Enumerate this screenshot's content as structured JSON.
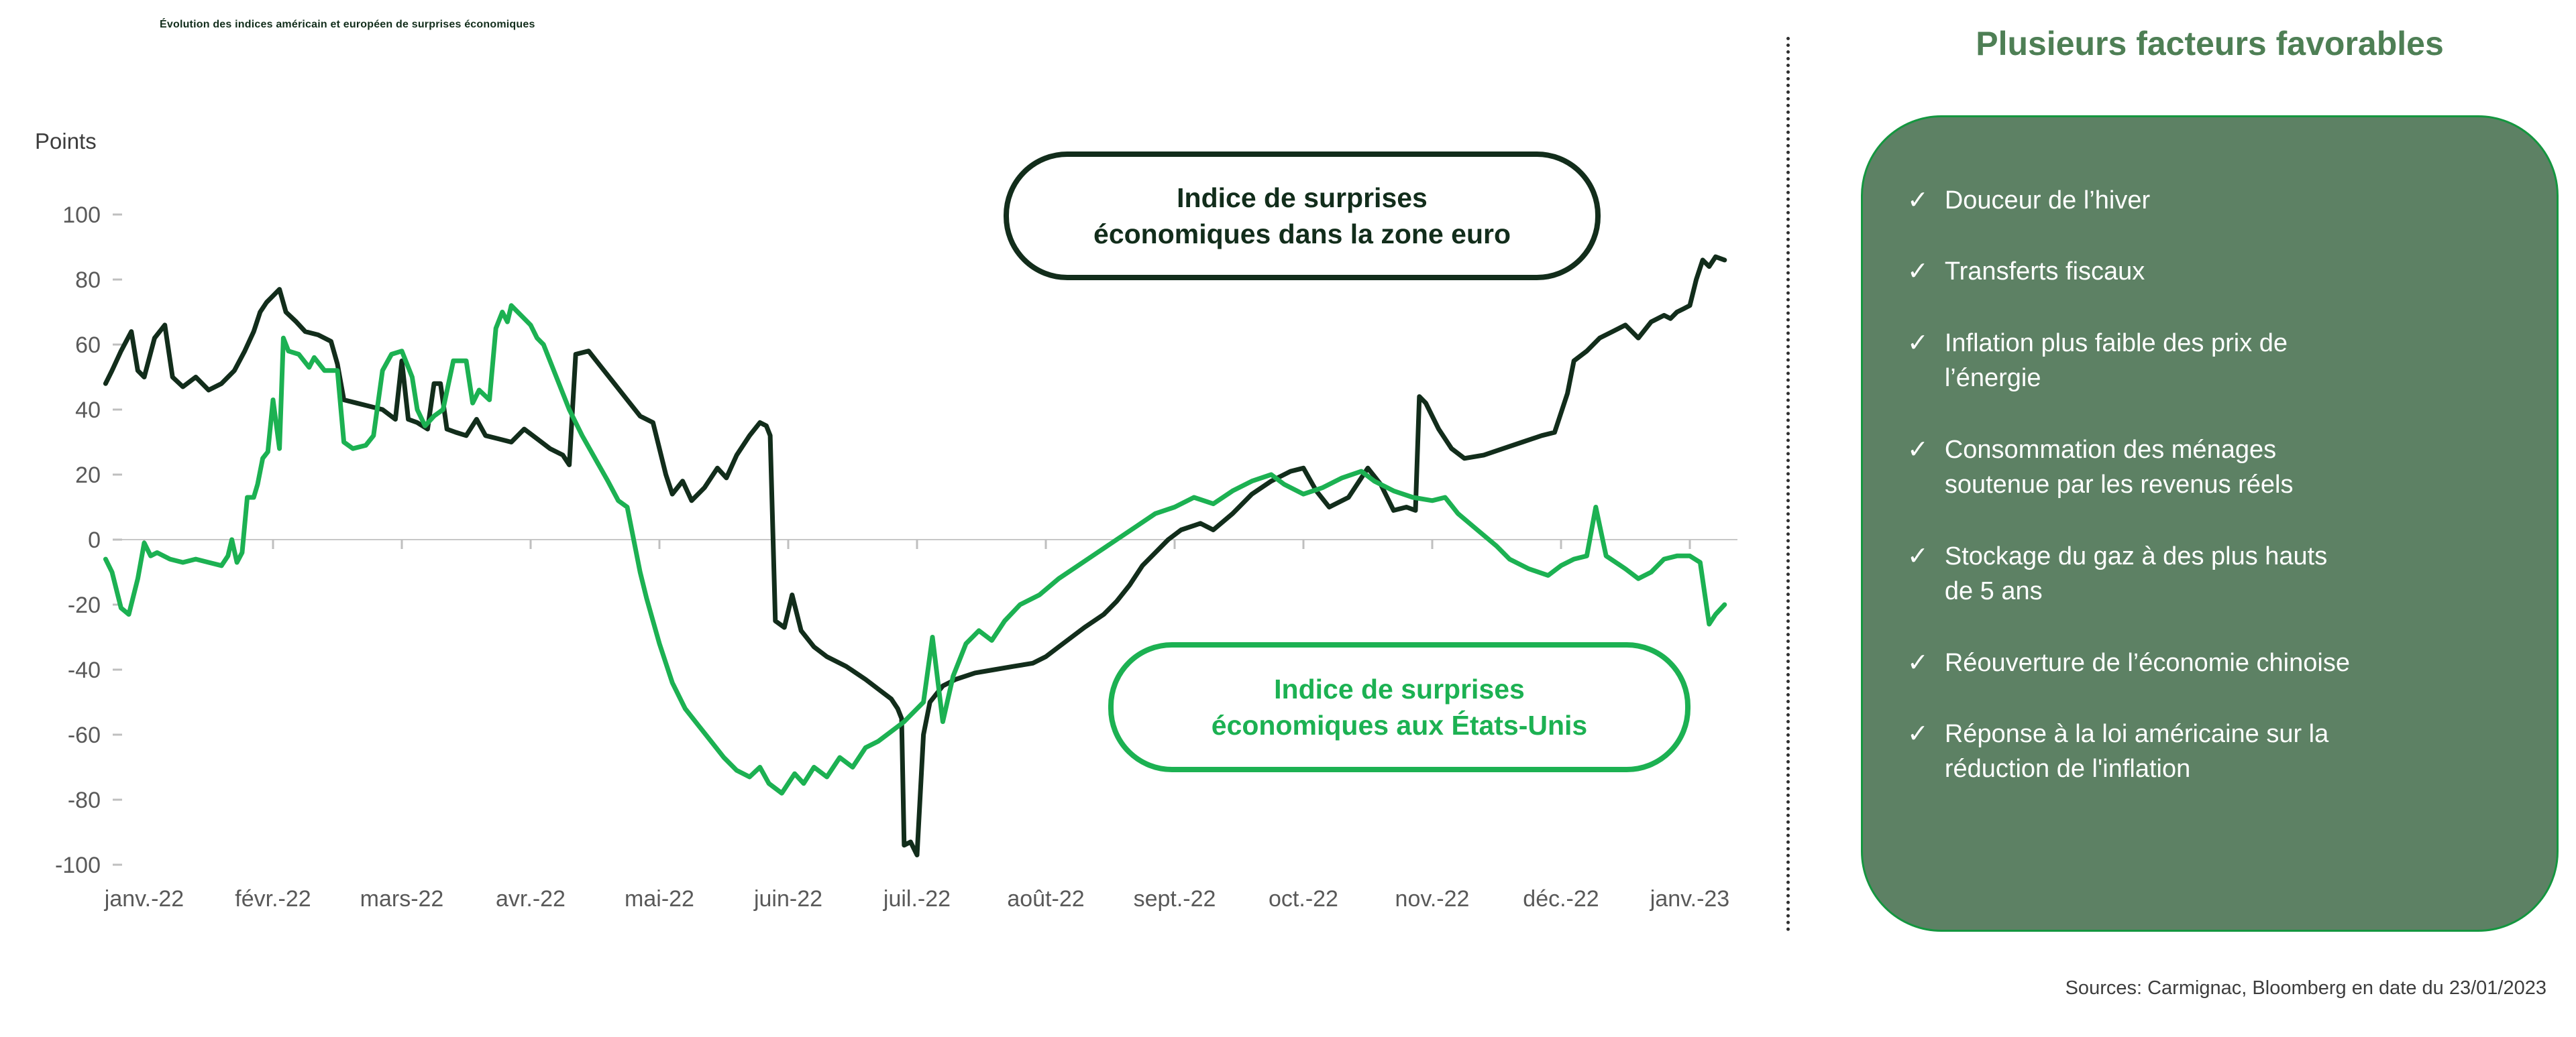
{
  "title": "Évolution des indices américain et européen de surprises économiques",
  "source_note": "Sources: Carmignac, Bloomberg en date du 23/01/2023",
  "legend_euro": "Indice de surprises\néconomiques dans la zone euro",
  "legend_us": "Indice de surprises\néconomiques aux États-Unis",
  "sidebar": {
    "title": "Plusieurs facteurs favorables",
    "check": "✓",
    "items": [
      "Douceur de l’hiver",
      "Transferts fiscaux",
      "Inflation plus faible des prix de\nl’énergie",
      "Consommation des ménages\nsoutenue par les revenus réels",
      "Stockage du gaz à des plus hauts\nde 5 ans",
      "Réouverture de l’économie chinoise",
      "Réponse à la loi américaine sur la\nréduction de l'inflation"
    ]
  },
  "colors": {
    "euro_line": "#122d1b",
    "us_line": "#1cb152",
    "panel_bg": "#5d8164",
    "panel_border": "#14963f",
    "panel_title": "#4e7f55",
    "axis_text": "#595959",
    "zero_line": "#c8c8c8"
  },
  "chart_data": {
    "type": "line",
    "title": "Évolution des indices américain et européen de surprises économiques",
    "xlabel": "",
    "ylabel": "Points",
    "ylim": [
      -100,
      100
    ],
    "yticks": [
      100,
      80,
      60,
      40,
      20,
      0,
      -20,
      -40,
      -60,
      -80,
      -100
    ],
    "categories": [
      "janv.-22",
      "févr.-22",
      "mars-22",
      "avr.-22",
      "mai-22",
      "juin-22",
      "juil.-22",
      "août-22",
      "sept.-22",
      "oct.-22",
      "nov.-22",
      "déc.-22",
      "janv.-23"
    ],
    "x_unit": "months after janv.-22 tick",
    "grid": "zero axis only",
    "legend_position": "annotated rounded boxes on plot",
    "series": [
      {
        "id": "euro-line",
        "name": "Indice de surprises économiques dans la zone euro",
        "color": "#122d1b",
        "points": [
          [
            -0.3,
            48
          ],
          [
            -0.25,
            52
          ],
          [
            -0.18,
            58
          ],
          [
            -0.1,
            64
          ],
          [
            -0.05,
            52
          ],
          [
            0.0,
            50
          ],
          [
            0.08,
            62
          ],
          [
            0.16,
            66
          ],
          [
            0.22,
            50
          ],
          [
            0.3,
            47
          ],
          [
            0.4,
            50
          ],
          [
            0.5,
            46
          ],
          [
            0.6,
            48
          ],
          [
            0.7,
            52
          ],
          [
            0.78,
            58
          ],
          [
            0.85,
            64
          ],
          [
            0.9,
            70
          ],
          [
            0.95,
            73
          ],
          [
            1.0,
            75
          ],
          [
            1.05,
            77
          ],
          [
            1.1,
            70
          ],
          [
            1.18,
            67
          ],
          [
            1.25,
            64
          ],
          [
            1.35,
            63
          ],
          [
            1.45,
            61
          ],
          [
            1.5,
            54
          ],
          [
            1.55,
            43
          ],
          [
            1.65,
            42
          ],
          [
            1.75,
            41
          ],
          [
            1.85,
            40
          ],
          [
            1.95,
            37
          ],
          [
            2.0,
            55
          ],
          [
            2.05,
            37
          ],
          [
            2.12,
            36
          ],
          [
            2.2,
            34
          ],
          [
            2.25,
            48
          ],
          [
            2.3,
            48
          ],
          [
            2.35,
            34
          ],
          [
            2.42,
            33
          ],
          [
            2.5,
            32
          ],
          [
            2.58,
            37
          ],
          [
            2.65,
            32
          ],
          [
            2.75,
            31
          ],
          [
            2.85,
            30
          ],
          [
            2.95,
            34
          ],
          [
            3.05,
            31
          ],
          [
            3.15,
            28
          ],
          [
            3.25,
            26
          ],
          [
            3.3,
            23
          ],
          [
            3.35,
            57
          ],
          [
            3.45,
            58
          ],
          [
            3.55,
            53
          ],
          [
            3.65,
            48
          ],
          [
            3.75,
            43
          ],
          [
            3.85,
            38
          ],
          [
            3.95,
            36
          ],
          [
            4.05,
            20
          ],
          [
            4.1,
            14
          ],
          [
            4.18,
            18
          ],
          [
            4.25,
            12
          ],
          [
            4.35,
            16
          ],
          [
            4.45,
            22
          ],
          [
            4.52,
            19
          ],
          [
            4.6,
            26
          ],
          [
            4.7,
            32
          ],
          [
            4.78,
            36
          ],
          [
            4.83,
            35
          ],
          [
            4.86,
            32
          ],
          [
            4.9,
            -25
          ],
          [
            4.97,
            -27
          ],
          [
            5.03,
            -17
          ],
          [
            5.1,
            -28
          ],
          [
            5.2,
            -33
          ],
          [
            5.3,
            -36
          ],
          [
            5.45,
            -39
          ],
          [
            5.6,
            -43
          ],
          [
            5.7,
            -46
          ],
          [
            5.8,
            -49
          ],
          [
            5.85,
            -52
          ],
          [
            5.88,
            -55
          ],
          [
            5.9,
            -94
          ],
          [
            5.95,
            -93
          ],
          [
            6.0,
            -97
          ],
          [
            6.05,
            -60
          ],
          [
            6.1,
            -50
          ],
          [
            6.2,
            -45
          ],
          [
            6.3,
            -43
          ],
          [
            6.45,
            -41
          ],
          [
            6.6,
            -40
          ],
          [
            6.75,
            -39
          ],
          [
            6.9,
            -38
          ],
          [
            7.0,
            -36
          ],
          [
            7.1,
            -33
          ],
          [
            7.2,
            -30
          ],
          [
            7.3,
            -27
          ],
          [
            7.45,
            -23
          ],
          [
            7.55,
            -19
          ],
          [
            7.65,
            -14
          ],
          [
            7.75,
            -8
          ],
          [
            7.85,
            -4
          ],
          [
            7.95,
            0
          ],
          [
            8.05,
            3
          ],
          [
            8.2,
            5
          ],
          [
            8.3,
            3
          ],
          [
            8.45,
            8
          ],
          [
            8.6,
            14
          ],
          [
            8.75,
            18
          ],
          [
            8.9,
            21
          ],
          [
            9.0,
            22
          ],
          [
            9.1,
            15
          ],
          [
            9.2,
            10
          ],
          [
            9.35,
            13
          ],
          [
            9.5,
            22
          ],
          [
            9.6,
            17
          ],
          [
            9.7,
            9
          ],
          [
            9.8,
            10
          ],
          [
            9.87,
            9
          ],
          [
            9.9,
            44
          ],
          [
            9.95,
            42
          ],
          [
            10.05,
            34
          ],
          [
            10.15,
            28
          ],
          [
            10.25,
            25
          ],
          [
            10.4,
            26
          ],
          [
            10.55,
            28
          ],
          [
            10.7,
            30
          ],
          [
            10.85,
            32
          ],
          [
            10.95,
            33
          ],
          [
            11.05,
            45
          ],
          [
            11.1,
            55
          ],
          [
            11.2,
            58
          ],
          [
            11.3,
            62
          ],
          [
            11.4,
            64
          ],
          [
            11.5,
            66
          ],
          [
            11.55,
            64
          ],
          [
            11.6,
            62
          ],
          [
            11.7,
            67
          ],
          [
            11.8,
            69
          ],
          [
            11.85,
            68
          ],
          [
            11.9,
            70
          ],
          [
            11.95,
            71
          ],
          [
            12.0,
            72
          ],
          [
            12.05,
            80
          ],
          [
            12.1,
            86
          ],
          [
            12.15,
            84
          ],
          [
            12.2,
            87
          ],
          [
            12.27,
            86
          ]
        ]
      },
      {
        "id": "us-line",
        "name": "Indice de surprises économiques aux États-Unis",
        "color": "#1cb152",
        "points": [
          [
            -0.3,
            -6
          ],
          [
            -0.25,
            -10
          ],
          [
            -0.18,
            -21
          ],
          [
            -0.12,
            -23
          ],
          [
            -0.05,
            -12
          ],
          [
            0.0,
            -1
          ],
          [
            0.05,
            -5
          ],
          [
            0.1,
            -4
          ],
          [
            0.2,
            -6
          ],
          [
            0.3,
            -7
          ],
          [
            0.4,
            -6
          ],
          [
            0.5,
            -7
          ],
          [
            0.6,
            -8
          ],
          [
            0.65,
            -5
          ],
          [
            0.68,
            0
          ],
          [
            0.72,
            -7
          ],
          [
            0.76,
            -4
          ],
          [
            0.8,
            13
          ],
          [
            0.85,
            13
          ],
          [
            0.88,
            17
          ],
          [
            0.92,
            25
          ],
          [
            0.96,
            27
          ],
          [
            1.0,
            43
          ],
          [
            1.05,
            28
          ],
          [
            1.08,
            62
          ],
          [
            1.12,
            58
          ],
          [
            1.2,
            57
          ],
          [
            1.28,
            53
          ],
          [
            1.32,
            56
          ],
          [
            1.4,
            52
          ],
          [
            1.5,
            52
          ],
          [
            1.55,
            30
          ],
          [
            1.62,
            28
          ],
          [
            1.72,
            29
          ],
          [
            1.78,
            32
          ],
          [
            1.85,
            52
          ],
          [
            1.92,
            57
          ],
          [
            2.0,
            58
          ],
          [
            2.08,
            50
          ],
          [
            2.12,
            40
          ],
          [
            2.18,
            35
          ],
          [
            2.25,
            38
          ],
          [
            2.32,
            40
          ],
          [
            2.4,
            55
          ],
          [
            2.5,
            55
          ],
          [
            2.55,
            42
          ],
          [
            2.6,
            46
          ],
          [
            2.68,
            43
          ],
          [
            2.73,
            65
          ],
          [
            2.78,
            70
          ],
          [
            2.82,
            67
          ],
          [
            2.85,
            72
          ],
          [
            2.95,
            68
          ],
          [
            3.0,
            66
          ],
          [
            3.05,
            62
          ],
          [
            3.1,
            60
          ],
          [
            3.2,
            50
          ],
          [
            3.3,
            40
          ],
          [
            3.4,
            32
          ],
          [
            3.5,
            25
          ],
          [
            3.6,
            18
          ],
          [
            3.68,
            12
          ],
          [
            3.75,
            10
          ],
          [
            3.8,
            0
          ],
          [
            3.85,
            -10
          ],
          [
            3.9,
            -18
          ],
          [
            3.95,
            -25
          ],
          [
            4.0,
            -32
          ],
          [
            4.05,
            -38
          ],
          [
            4.1,
            -44
          ],
          [
            4.2,
            -52
          ],
          [
            4.3,
            -57
          ],
          [
            4.4,
            -62
          ],
          [
            4.5,
            -67
          ],
          [
            4.6,
            -71
          ],
          [
            4.7,
            -73
          ],
          [
            4.78,
            -70
          ],
          [
            4.85,
            -75
          ],
          [
            4.95,
            -78
          ],
          [
            5.05,
            -72
          ],
          [
            5.12,
            -75
          ],
          [
            5.2,
            -70
          ],
          [
            5.3,
            -73
          ],
          [
            5.4,
            -67
          ],
          [
            5.5,
            -70
          ],
          [
            5.6,
            -64
          ],
          [
            5.7,
            -62
          ],
          [
            5.8,
            -59
          ],
          [
            5.9,
            -56
          ],
          [
            6.0,
            -52
          ],
          [
            6.05,
            -50
          ],
          [
            6.12,
            -30
          ],
          [
            6.2,
            -56
          ],
          [
            6.28,
            -42
          ],
          [
            6.38,
            -32
          ],
          [
            6.48,
            -28
          ],
          [
            6.58,
            -31
          ],
          [
            6.68,
            -25
          ],
          [
            6.8,
            -20
          ],
          [
            6.95,
            -17
          ],
          [
            7.1,
            -12
          ],
          [
            7.25,
            -8
          ],
          [
            7.4,
            -4
          ],
          [
            7.55,
            0
          ],
          [
            7.7,
            4
          ],
          [
            7.85,
            8
          ],
          [
            8.0,
            10
          ],
          [
            8.15,
            13
          ],
          [
            8.3,
            11
          ],
          [
            8.45,
            15
          ],
          [
            8.6,
            18
          ],
          [
            8.75,
            20
          ],
          [
            8.85,
            17
          ],
          [
            9.0,
            14
          ],
          [
            9.15,
            16
          ],
          [
            9.3,
            19
          ],
          [
            9.45,
            21
          ],
          [
            9.55,
            18
          ],
          [
            9.7,
            15
          ],
          [
            9.85,
            13
          ],
          [
            10.0,
            12
          ],
          [
            10.1,
            13
          ],
          [
            10.2,
            8
          ],
          [
            10.35,
            3
          ],
          [
            10.5,
            -2
          ],
          [
            10.6,
            -6
          ],
          [
            10.75,
            -9
          ],
          [
            10.9,
            -11
          ],
          [
            11.0,
            -8
          ],
          [
            11.1,
            -6
          ],
          [
            11.2,
            -5
          ],
          [
            11.27,
            10
          ],
          [
            11.35,
            -5
          ],
          [
            11.5,
            -9
          ],
          [
            11.6,
            -12
          ],
          [
            11.7,
            -10
          ],
          [
            11.8,
            -6
          ],
          [
            11.9,
            -5
          ],
          [
            12.0,
            -5
          ],
          [
            12.08,
            -7
          ],
          [
            12.15,
            -26
          ],
          [
            12.2,
            -23
          ],
          [
            12.27,
            -20
          ]
        ]
      }
    ]
  }
}
